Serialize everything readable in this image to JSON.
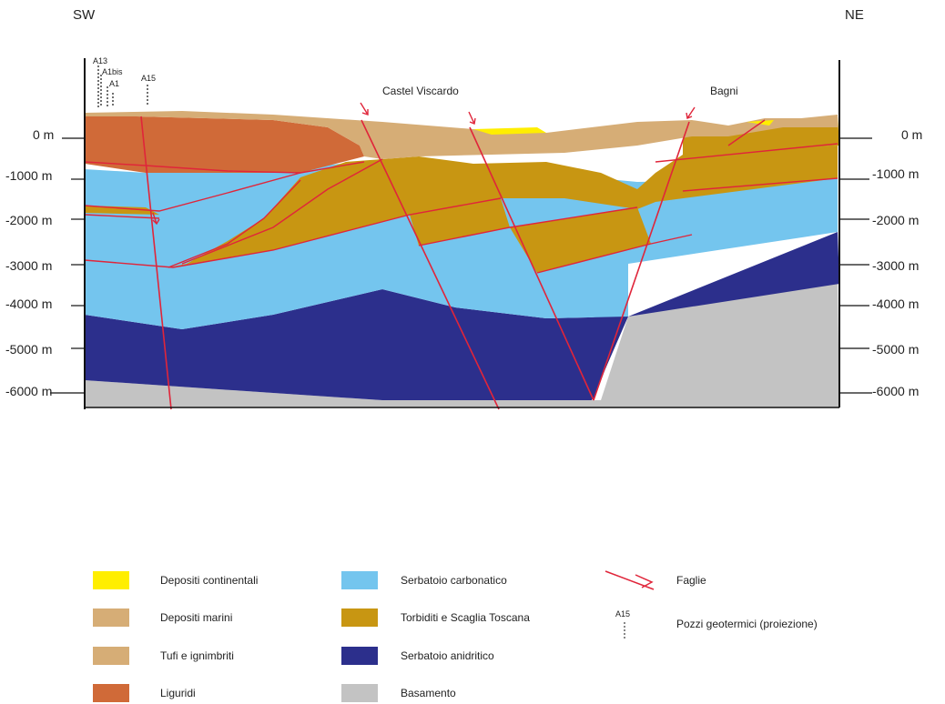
{
  "orientation": {
    "left": "SW",
    "right": "NE"
  },
  "depth_labels": [
    "0 m",
    "-1000  m",
    "-2000  m",
    "-3000  m",
    "-4000  m",
    "-5000  m",
    "-6000  m"
  ],
  "places": {
    "castel_viscardo": "Castel Viscardo",
    "bagni": "Bagni"
  },
  "wells": {
    "a13": "A13",
    "a1bis": "A1bis",
    "a1": "A1",
    "a15": "A15"
  },
  "colors": {
    "depositi_continentali": "#ffee00",
    "depositi_marini": "#d6ad76",
    "tufi": "#d6ad76",
    "liguridi": "#d06a38",
    "serbatoio_carbonatico": "#74c5ee",
    "torbiditi": "#c89612",
    "serbatoio_anidritico": "#2c2f8c",
    "basamento": "#c3c3c3",
    "faglie": "#e0253a"
  },
  "legend": {
    "depositi_continentali": "Depositi continentali",
    "depositi_marini": "Depositi marini",
    "tufi": "Tufi e ignimbriti",
    "liguridi": "Liguridi",
    "serbatoio_carbonatico": "Serbatoio carbonatico",
    "torbiditi": "Torbiditi e Scaglia Toscana",
    "serbatoio_anidritico": "Serbatoio anidritico",
    "basamento": "Basamento",
    "faglie": "Faglie",
    "pozzi_symbol": "A15",
    "pozzi": "Pozzi geotermici (proiezione)"
  }
}
